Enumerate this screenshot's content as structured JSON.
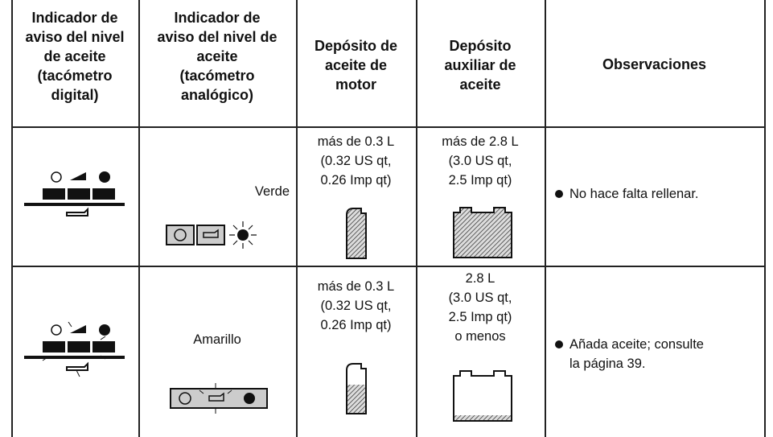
{
  "table": {
    "header": [
      "Indicador de\naviso del nivel\nde aceite\n(tacómetro\ndigital)",
      "Indicador de\naviso del nivel de\naceite\n(tacómetro\nanalógico)",
      "Depósito de\naceite de\nmotor",
      "Depósito\nauxiliar de\naceite",
      "Observaciones"
    ],
    "rows": [
      [
        "Verde",
        "más de 0.3 L\n(0.32 US qt,\n0.26 Imp qt)",
        "más de 2.8 L\n(3.0 US qt,\n2.5 Imp qt)",
        "No hace falta rellenar."
      ],
      [
        "Amarillo",
        "más de 0.3 L\n(0.32 US qt,\n0.26 Imp qt)",
        "2.8 L\n(3.0 US qt,\n2.5 Imp qt)\no menos",
        "Añada aceite; consulte\nla página 39."
      ]
    ]
  }
}
